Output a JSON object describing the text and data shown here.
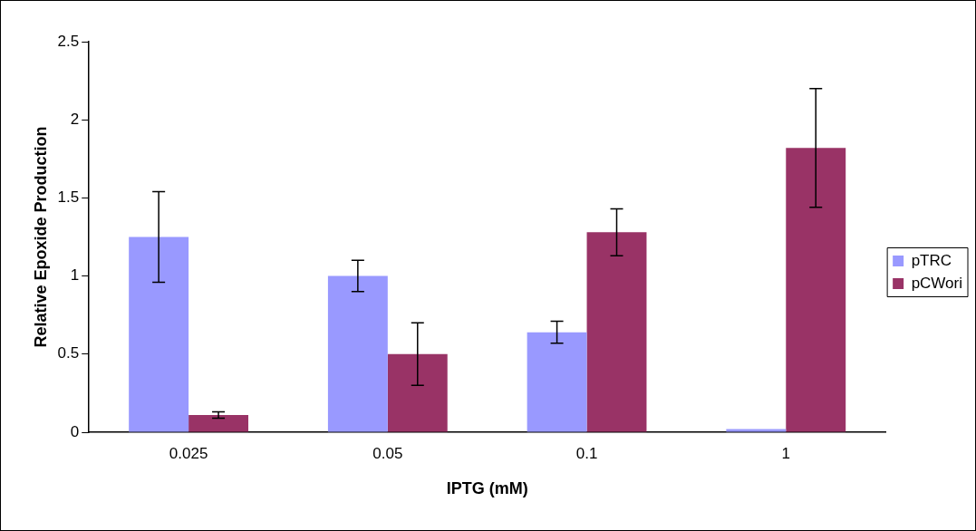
{
  "chart_data": {
    "type": "bar",
    "xlabel": "IPTG (mM)",
    "ylabel": "Relative Epoxide Production",
    "categories": [
      "0.025",
      "0.05",
      "0.1",
      "1"
    ],
    "series": [
      {
        "name": "pTRC",
        "color": "#9999ff",
        "values": [
          1.25,
          1.0,
          0.64,
          0.02
        ],
        "errors": [
          0.29,
          0.1,
          0.07,
          null
        ]
      },
      {
        "name": "pCWori",
        "color": "#993366",
        "values": [
          0.11,
          0.5,
          1.28,
          1.82
        ],
        "errors": [
          0.02,
          0.2,
          0.15,
          0.38
        ]
      }
    ],
    "ylim": [
      0,
      2.5
    ],
    "yticks": [
      0,
      0.5,
      1,
      1.5,
      2,
      2.5
    ],
    "grid": false,
    "legend": "right"
  }
}
